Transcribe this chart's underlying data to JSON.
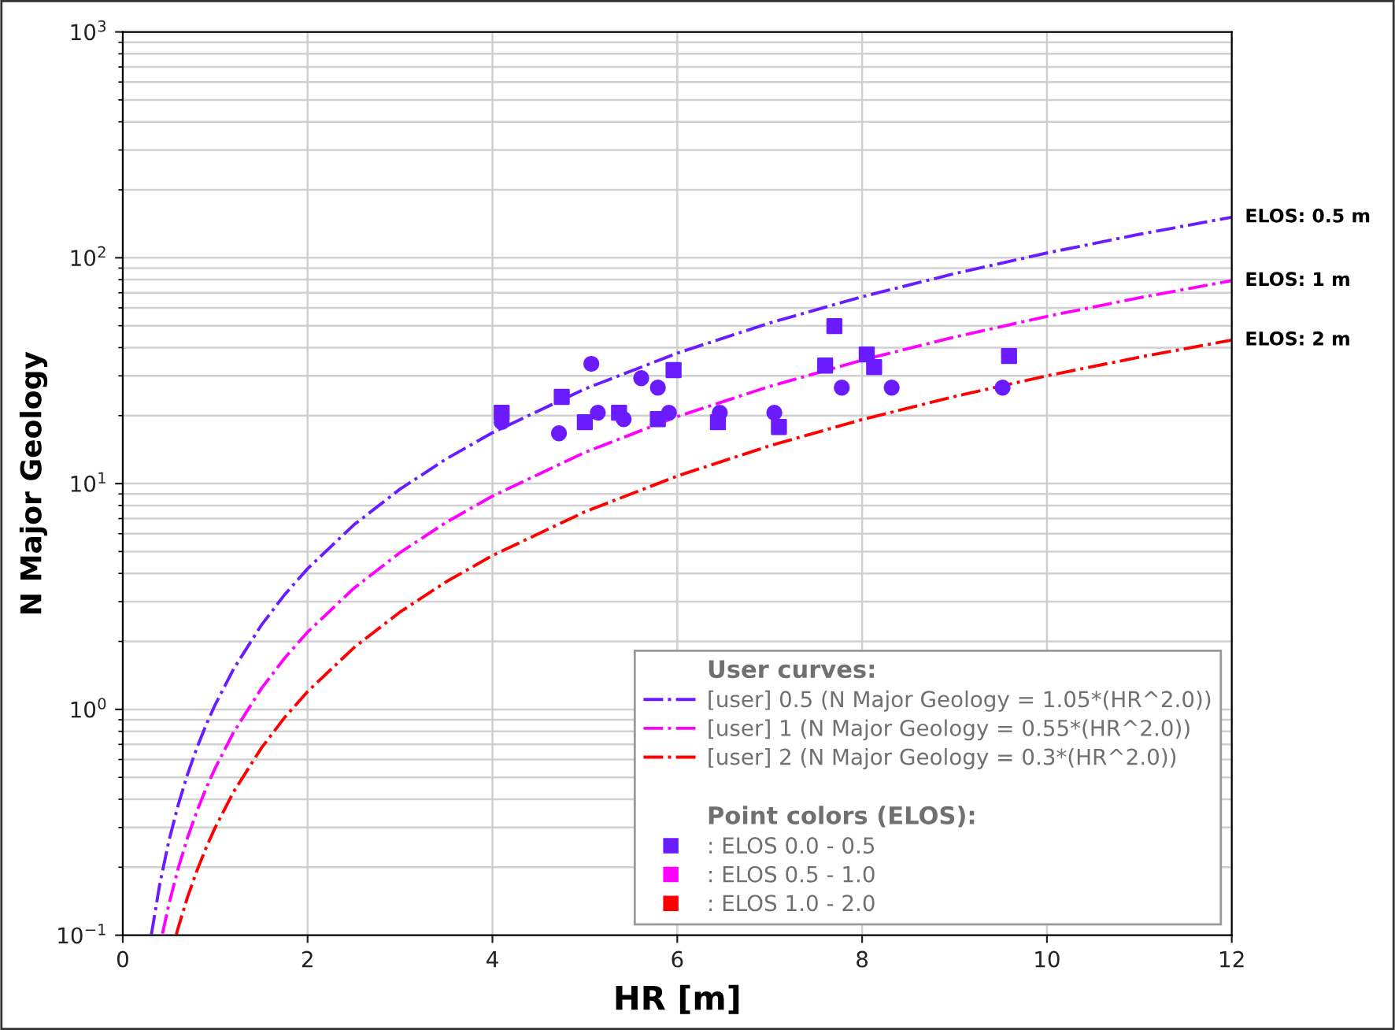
{
  "chart_data": {
    "type": "line",
    "xlabel": "HR [m]",
    "ylabel": "N Major Geology",
    "legend_title": "User curves:",
    "xlim": [
      0,
      12
    ],
    "xticks": [
      0,
      2,
      4,
      6,
      8,
      10,
      12
    ],
    "ylim": [
      0.1,
      1000
    ],
    "log": "y",
    "yticks": [
      {
        "value": 0.1,
        "label": "10$^{−1}$"
      },
      {
        "value": 1,
        "label": "10$^{0}$"
      },
      {
        "value": 10,
        "label": "10$^{1}$"
      },
      {
        "value": 100,
        "label": "10$^{2}$"
      },
      {
        "value": 1000,
        "label": "10$^{3}$"
      }
    ],
    "grid": true,
    "legend": "bottom right",
    "line_style": "dashdot",
    "series": [
      {
        "name": "[user] 0.5 (N Major Geology = 1.05*(HR^2.0))",
        "color": "#6a1bff",
        "x": [
          0.31,
          0.4,
          0.5,
          0.6,
          0.7,
          0.8,
          0.9,
          1,
          1.2,
          1.5,
          1.75,
          2,
          2.5,
          3,
          3.5,
          4,
          5,
          6,
          7,
          8,
          9,
          10,
          11,
          12
        ],
        "values": [
          0.1009,
          0.168,
          0.2625,
          0.378,
          0.5145,
          0.672,
          0.8505,
          1.05,
          1.512,
          2.3625,
          3.216,
          4.2,
          6.5625,
          9.45,
          12.86,
          16.8,
          26.25,
          37.8,
          51.45,
          67.2,
          85.05,
          105,
          127.05,
          151.2
        ]
      },
      {
        "name": "[user] 1 (N Major Geology = 0.55*(HR^2.0))",
        "color": "#ff00ff",
        "x": [
          0.43,
          0.5,
          0.6,
          0.7,
          0.8,
          0.9,
          1,
          1.2,
          1.5,
          1.75,
          2,
          2.5,
          3,
          3.5,
          4,
          5,
          6,
          7,
          8,
          9,
          10,
          11,
          12
        ],
        "values": [
          0.1017,
          0.1375,
          0.198,
          0.2695,
          0.352,
          0.4455,
          0.55,
          0.792,
          1.2375,
          1.684,
          2.2,
          3.4375,
          4.95,
          6.738,
          8.8,
          13.75,
          19.8,
          26.95,
          35.2,
          44.55,
          55,
          66.55,
          79.2
        ]
      },
      {
        "name": "[user] 2 (N Major Geology = 0.3*(HR^2.0))",
        "color": "#ff0000",
        "x": [
          0.58,
          0.6,
          0.7,
          0.8,
          0.9,
          1,
          1.2,
          1.5,
          1.75,
          2,
          2.5,
          3,
          3.5,
          4,
          5,
          6,
          7,
          8,
          9,
          10,
          11,
          12
        ],
        "values": [
          0.1009,
          0.108,
          0.147,
          0.192,
          0.243,
          0.3,
          0.432,
          0.675,
          0.919,
          1.2,
          1.875,
          2.7,
          3.675,
          4.8,
          7.5,
          10.8,
          14.7,
          19.2,
          24.3,
          30,
          36.3,
          43.2
        ]
      },
      {
        "type": "scatter",
        "marker": "circle",
        "color": "#6a1bff",
        "x": [
          4.1,
          4.72,
          5.07,
          5.14,
          5.42,
          5.61,
          5.79,
          5.91,
          6.46,
          7.05,
          7.78,
          8.32,
          9.52
        ],
        "values": [
          18.7,
          16.7,
          33.9,
          20.6,
          19.3,
          29.3,
          26.6,
          20.6,
          20.6,
          20.6,
          26.6,
          26.6,
          26.6
        ]
      },
      {
        "type": "scatter",
        "marker": "square",
        "name": ": ELOS 0.0 - 0.5",
        "color": "#6a1bff",
        "x": [
          4.1,
          4.75,
          5.0,
          5.37,
          5.79,
          5.96,
          6.44,
          7.1,
          7.6,
          7.7,
          8.05,
          8.13,
          9.59
        ],
        "values": [
          20.6,
          24.2,
          18.7,
          20.6,
          19.3,
          31.8,
          18.7,
          17.8,
          33.3,
          49.8,
          37.3,
          32.8,
          36.7
        ]
      },
      {
        "type": "scatter",
        "marker": "square",
        "name": ": ELOS 0.5 - 1.0",
        "color": "#ff00ff"
      },
      {
        "type": "scatter",
        "marker": "square",
        "name": ": ELOS 1.0 - 2.0",
        "color": "#ff0000"
      }
    ],
    "annotations": [
      "ELOS: 0.5 m",
      "ELOS: 1 m",
      "ELOS: 2 m",
      "Point colors (ELOS):"
    ]
  }
}
